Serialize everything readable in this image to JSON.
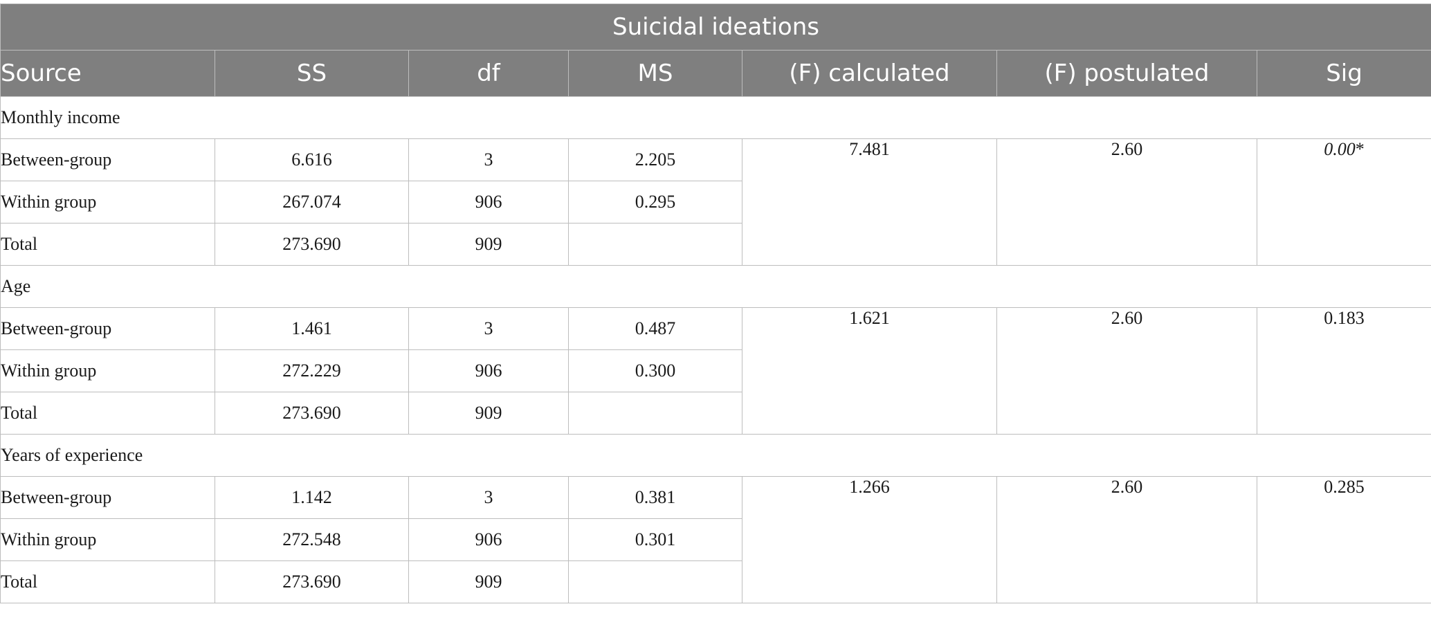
{
  "title": "Suicidal ideations",
  "columns": [
    "Source",
    "SS",
    "df",
    "MS",
    "(F) calculated",
    "(F) postulated",
    "Sig"
  ],
  "groups": [
    {
      "label": "Monthly income",
      "rows": [
        {
          "source": "Between-group",
          "ss": "6.616",
          "df": "3",
          "ms": "2.205"
        },
        {
          "source": "Within group",
          "ss": "267.074",
          "df": "906",
          "ms": "0.295"
        },
        {
          "source": "Total",
          "ss": "273.690",
          "df": "909",
          "ms": ""
        }
      ],
      "f_calculated": "7.481",
      "f_postulated": "2.60",
      "sig": "0.00",
      "sig_mark": "*"
    },
    {
      "label": "Age",
      "rows": [
        {
          "source": "Between-group",
          "ss": "1.461",
          "df": "3",
          "ms": "0.487"
        },
        {
          "source": "Within group",
          "ss": "272.229",
          "df": "906",
          "ms": "0.300"
        },
        {
          "source": "Total",
          "ss": "273.690",
          "df": "909",
          "ms": ""
        }
      ],
      "f_calculated": "1.621",
      "f_postulated": "2.60",
      "sig": "0.183",
      "sig_mark": ""
    },
    {
      "label": "Years of experience",
      "rows": [
        {
          "source": "Between-group",
          "ss": "1.142",
          "df": "3",
          "ms": "0.381"
        },
        {
          "source": "Within group",
          "ss": "272.548",
          "df": "906",
          "ms": "0.301"
        },
        {
          "source": "Total",
          "ss": "273.690",
          "df": "909",
          "ms": ""
        }
      ],
      "f_calculated": "1.266",
      "f_postulated": "2.60",
      "sig": "0.285",
      "sig_mark": ""
    }
  ]
}
